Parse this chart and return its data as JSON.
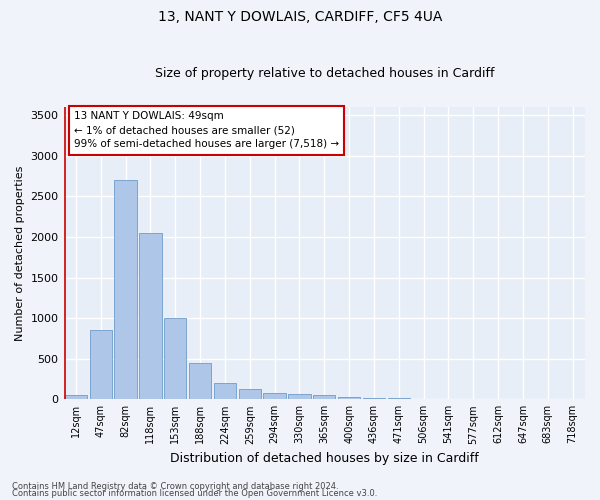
{
  "title1": "13, NANT Y DOWLAIS, CARDIFF, CF5 4UA",
  "title2": "Size of property relative to detached houses in Cardiff",
  "xlabel": "Distribution of detached houses by size in Cardiff",
  "ylabel": "Number of detached properties",
  "bar_color": "#aec6e8",
  "bar_edge_color": "#5a8fc2",
  "background_color": "#e8eef7",
  "grid_color": "#ffffff",
  "fig_background": "#f0f4fa",
  "categories": [
    "12sqm",
    "47sqm",
    "82sqm",
    "118sqm",
    "153sqm",
    "188sqm",
    "224sqm",
    "259sqm",
    "294sqm",
    "330sqm",
    "365sqm",
    "400sqm",
    "436sqm",
    "471sqm",
    "506sqm",
    "541sqm",
    "577sqm",
    "612sqm",
    "647sqm",
    "683sqm",
    "718sqm"
  ],
  "values": [
    52,
    850,
    2700,
    2050,
    1000,
    450,
    200,
    130,
    80,
    60,
    50,
    30,
    20,
    10,
    5,
    3,
    2,
    2,
    1,
    1,
    1
  ],
  "ylim": [
    0,
    3600
  ],
  "yticks": [
    0,
    500,
    1000,
    1500,
    2000,
    2500,
    3000,
    3500
  ],
  "annotation_text": "13 NANT Y DOWLAIS: 49sqm\n← 1% of detached houses are smaller (52)\n99% of semi-detached houses are larger (7,518) →",
  "annotation_box_color": "#ffffff",
  "annotation_border_color": "#cc0000",
  "footer1": "Contains HM Land Registry data © Crown copyright and database right 2024.",
  "footer2": "Contains public sector information licensed under the Open Government Licence v3.0."
}
